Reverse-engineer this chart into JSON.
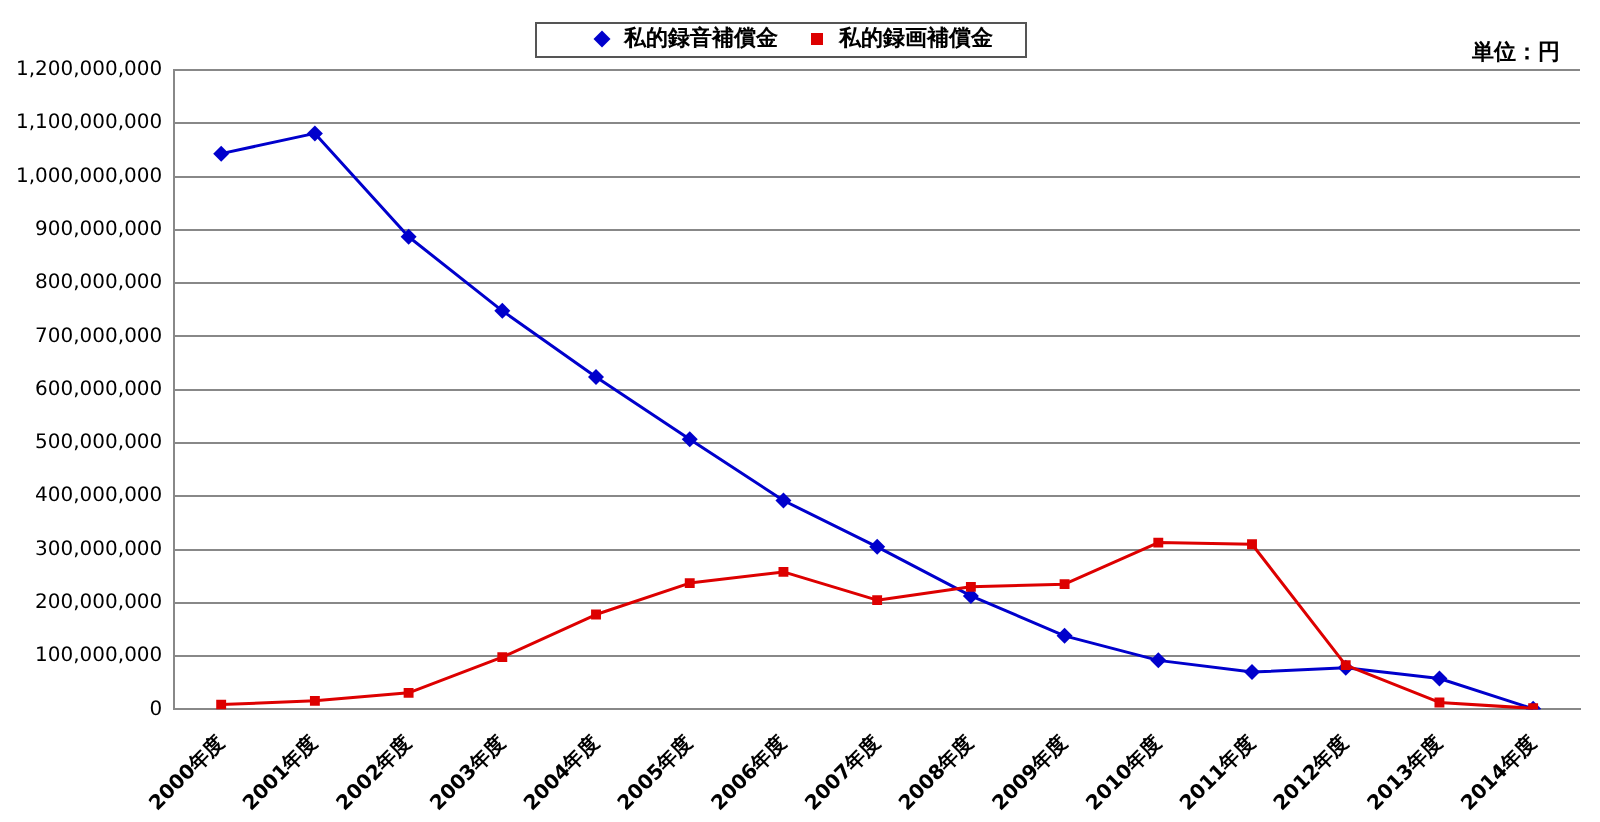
{
  "chart_data": {
    "type": "line",
    "categories": [
      "2000年度",
      "2001年度",
      "2002年度",
      "2003年度",
      "2004年度",
      "2005年度",
      "2006年度",
      "2007年度",
      "2008年度",
      "2009年度",
      "2010年度",
      "2011年度",
      "2012年度",
      "2013年度",
      "2014年度"
    ],
    "series": [
      {
        "name": "私的録音補償金",
        "color": "#0000cc",
        "marker": "diamond",
        "values": [
          1043000000,
          1081000000,
          887000000,
          748000000,
          624000000,
          507000000,
          392000000,
          305000000,
          213000000,
          138000000,
          92000000,
          70000000,
          78000000,
          58000000,
          1000000
        ]
      },
      {
        "name": "私的録画補償金",
        "color": "#dd0000",
        "marker": "square",
        "values": [
          9000000,
          16000000,
          31000000,
          98000000,
          178000000,
          237000000,
          258000000,
          205000000,
          230000000,
          235000000,
          313000000,
          310000000,
          83000000,
          13000000,
          2000000
        ]
      }
    ],
    "ylim": [
      0,
      1200000000
    ],
    "yticks": [
      0,
      {
        "value": 100000000,
        "label": "100,000,000"
      },
      {
        "value": 200000000,
        "label": "200,000,000"
      },
      {
        "value": 300000000,
        "label": "300,000,000"
      },
      {
        "value": 400000000,
        "label": "400,000,000"
      },
      {
        "value": 500000000,
        "label": "500,000,000"
      },
      {
        "value": 600000000,
        "label": "600,000,000"
      },
      {
        "value": 700000000,
        "label": "700,000,000"
      },
      {
        "value": 800000000,
        "label": "800,000,000"
      },
      {
        "value": 900000000,
        "label": "900,000,000"
      },
      {
        "value": 1000000000,
        "label": "1,000,000,000"
      },
      {
        "value": 1100000000,
        "label": "1,100,000,000"
      },
      {
        "value": 1200000000,
        "label": "1,200,000,000"
      }
    ],
    "grid": "y",
    "legend": "top",
    "line_style": "solid",
    "annotations": [
      "単位：円"
    ]
  }
}
